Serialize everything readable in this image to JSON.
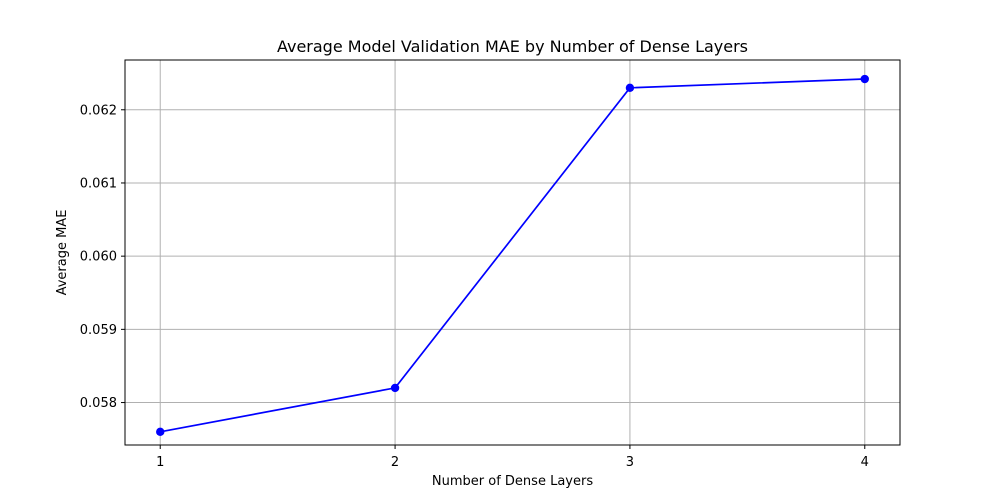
{
  "chart_data": {
    "type": "line",
    "title": "Average Model Validation MAE by Number of Dense Layers",
    "xlabel": "Number of Dense Layers",
    "ylabel": "Average MAE",
    "x": [
      1,
      2,
      3,
      4
    ],
    "x_tick_labels": [
      "1",
      "2",
      "3",
      "4"
    ],
    "series": [
      {
        "values": [
          0.0576,
          0.0582,
          0.0623,
          0.06242
        ]
      }
    ],
    "y_ticks": [
      0.058,
      0.059,
      0.06,
      0.061,
      0.062
    ],
    "y_tick_labels": [
      "0.058",
      "0.059",
      "0.060",
      "0.061",
      "0.062"
    ],
    "xlim": [
      0.85,
      4.15
    ],
    "ylim": [
      0.05742,
      0.06268
    ],
    "grid": true,
    "line_color": "#0000ff",
    "marker": "circle"
  }
}
